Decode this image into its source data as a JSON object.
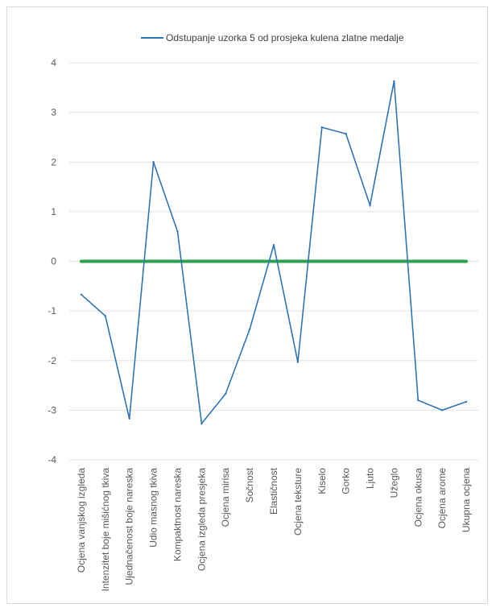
{
  "chart_data": {
    "type": "line",
    "title": "",
    "xlabel": "",
    "ylabel": "",
    "ylim": [
      -4,
      4
    ],
    "yticks": [
      "4",
      "3",
      "2",
      "1",
      "0",
      "-1",
      "-2",
      "-3",
      "-4"
    ],
    "grid": true,
    "legend_position": "top",
    "categories": [
      "Ocjena vanjskog izgleda",
      "Intenzitet boje mišićnog tkiva",
      "Ujednačenost boje nareska",
      "Udio masnog tkiva",
      "Kompaktnost nareska",
      "Ocjena izgleda presjeka",
      "Ocjena mirisa",
      "Sočnost",
      "Elastičnost",
      "Ocjena teksture",
      "Kiselo",
      "Gorko",
      "Ljuto",
      "Užeglo",
      "Ocjena okusa",
      "Ocjena arome",
      "Ukupna ocjena"
    ],
    "series": [
      {
        "name": "Odstupanje uzorka 5  od prosjeka kulena zlatne medalje",
        "color": "#2e75b6",
        "values": [
          -0.67,
          -1.1,
          -3.17,
          2.0,
          0.6,
          -3.27,
          -2.67,
          -1.37,
          0.33,
          -2.03,
          2.7,
          2.57,
          1.13,
          3.63,
          -2.8,
          -3.0,
          -2.83
        ]
      }
    ],
    "reference_line": {
      "value": 0,
      "color": "#2ca24d"
    }
  }
}
